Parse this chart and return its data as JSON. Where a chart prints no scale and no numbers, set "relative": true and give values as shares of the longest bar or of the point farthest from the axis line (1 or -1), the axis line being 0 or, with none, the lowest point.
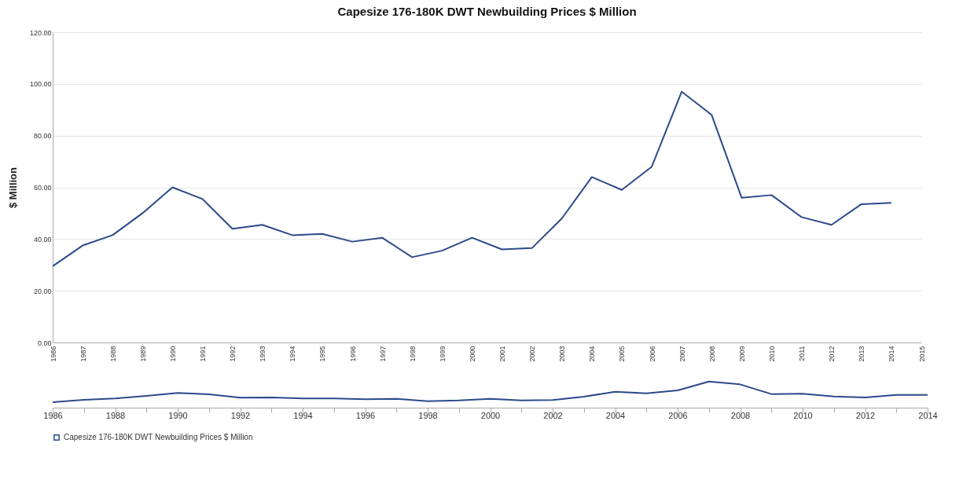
{
  "chart_data": [
    {
      "type": "line",
      "title": "Capesize 176-180K DWT Newbuilding Prices $ Million",
      "ylabel": "$ Million",
      "x": [
        1986,
        1987,
        1988,
        1989,
        1990,
        1991,
        1992,
        1993,
        1994,
        1995,
        1996,
        1997,
        1998,
        1999,
        2000,
        2001,
        2002,
        2003,
        2004,
        2005,
        2006,
        2007,
        2008,
        2009,
        2010,
        2011,
        2012,
        2013,
        2014
      ],
      "series": [
        {
          "color": "#2b4a8b",
          "values": [
            29.5,
            37.5,
            41.5,
            50,
            60,
            55.5,
            44,
            45.5,
            41.5,
            42,
            39,
            40.5,
            33,
            35.5,
            40.5,
            36,
            36.5,
            48,
            64,
            59,
            68,
            97,
            88,
            56,
            57,
            48.5,
            45.5,
            53.5,
            54
          ]
        }
      ],
      "xlim": [
        1986,
        2015
      ],
      "xticks": [
        1986,
        1987,
        1988,
        1989,
        1990,
        1991,
        1992,
        1993,
        1994,
        1995,
        1996,
        1997,
        1998,
        1999,
        2000,
        2001,
        2002,
        2003,
        2004,
        2005,
        2006,
        2007,
        2008,
        2009,
        2010,
        2011,
        2012,
        2013,
        2014,
        2015
      ],
      "ylim": [
        0,
        120
      ],
      "yticks": [
        {
          "value": 0,
          "label": "0.00"
        },
        {
          "value": 20,
          "label": "20.00"
        },
        {
          "value": 40,
          "label": "40.00"
        },
        {
          "value": 60,
          "label": "60.00"
        },
        {
          "value": 80,
          "label": "80.00"
        },
        {
          "value": 100,
          "label": "100.00"
        },
        {
          "value": 120,
          "label": "120.00"
        }
      ],
      "grid": "y"
    },
    {
      "type": "line",
      "x": [
        1986,
        1987,
        1988,
        1989,
        1990,
        1991,
        1992,
        1993,
        1994,
        1995,
        1996,
        1997,
        1998,
        1999,
        2000,
        2001,
        2002,
        2003,
        2004,
        2005,
        2006,
        2007,
        2008,
        2009,
        2010,
        2011,
        2012,
        2013,
        2014
      ],
      "series": [
        {
          "name": "Capesize 176-180K DWT Newbuilding Prices $ Million",
          "color": "#2b4a8b",
          "values": [
            0.21,
            0.3,
            0.35,
            0.45,
            0.56,
            0.51,
            0.38,
            0.39,
            0.35,
            0.35,
            0.32,
            0.34,
            0.25,
            0.28,
            0.34,
            0.28,
            0.29,
            0.42,
            0.61,
            0.55,
            0.66,
            1,
            0.89,
            0.52,
            0.53,
            0.43,
            0.39,
            0.49,
            0.49
          ]
        }
      ],
      "relative": true,
      "xlim": [
        1986,
        2014
      ],
      "xticks": [
        1986,
        {
          "value": 1987,
          "label": null
        },
        1988,
        {
          "value": 1989,
          "label": null
        },
        1990,
        {
          "value": 1991,
          "label": null
        },
        1992,
        {
          "value": 1993,
          "label": null
        },
        1994,
        {
          "value": 1995,
          "label": null
        },
        1996,
        {
          "value": 1997,
          "label": null
        },
        1998,
        {
          "value": 1999,
          "label": null
        },
        2000,
        {
          "value": 2001,
          "label": null
        },
        2002,
        {
          "value": 2003,
          "label": null
        },
        2004,
        {
          "value": 2005,
          "label": null
        },
        2006,
        {
          "value": 2007,
          "label": null
        },
        2008,
        {
          "value": 2009,
          "label": null
        },
        2010,
        {
          "value": 2011,
          "label": null
        },
        2012,
        {
          "value": 2013,
          "label": null
        },
        2014
      ],
      "tick_labels": "x",
      "legend": "bottom"
    }
  ]
}
